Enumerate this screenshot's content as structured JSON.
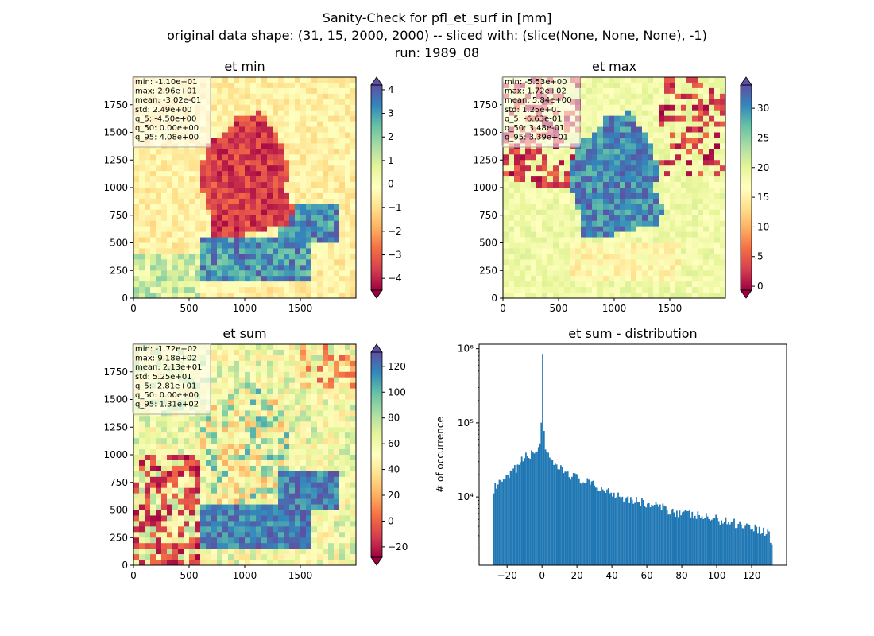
{
  "figure": {
    "title_lines": [
      "Sanity-Check for pfl_et_surf in [mm]",
      "original data shape: (31, 15, 2000, 2000) -- sliced with: (slice(None, None, None), -1)",
      "run: 1989_08"
    ]
  },
  "colormap": {
    "name": "Spectral",
    "stops": [
      "#9e0142",
      "#d53e4f",
      "#f46d43",
      "#fdae61",
      "#fee08b",
      "#ffffbf",
      "#e6f598",
      "#abdda4",
      "#66c2a5",
      "#3288bd",
      "#5e4fa2"
    ]
  },
  "maps": [
    {
      "title": "et min",
      "stats": [
        "min: -1.10e+01",
        "max: 2.96e+01",
        "mean: -3.02e-01",
        "std: 2.49e+00",
        "q_5: -4.50e+00",
        "q_50: 0.00e+00",
        "q_95: 4.08e+00"
      ],
      "xticks": [
        0,
        500,
        1000,
        1500
      ],
      "yticks": [
        0,
        250,
        500,
        750,
        1000,
        1250,
        1500,
        1750
      ],
      "extent": [
        0,
        2000
      ],
      "colorbar": {
        "vmin": -4.5,
        "vmax": 4.2,
        "ticks": [
          -4,
          -3,
          -2,
          -1,
          0,
          1,
          2,
          3,
          4
        ],
        "tick_labels": [
          "−4",
          "−3",
          "−2",
          "−1",
          "0",
          "1",
          "2",
          "3",
          "4"
        ]
      }
    },
    {
      "title": "et max",
      "stats": [
        "min: -5.53e+00",
        "max: 1.72e+02",
        "mean: 5.84e+00",
        "std: 1.25e+01",
        "q_5: -6.63e-01",
        "q_50: 3.48e-01",
        "q_95: 3.39e+01"
      ],
      "xticks": [
        0,
        500,
        1000,
        1500
      ],
      "yticks": [
        0,
        250,
        500,
        750,
        1000,
        1250,
        1500,
        1750
      ],
      "extent": [
        0,
        2000
      ],
      "colorbar": {
        "vmin": -0.66,
        "vmax": 33.9,
        "ticks": [
          0,
          5,
          10,
          15,
          20,
          25,
          30
        ],
        "tick_labels": [
          "0",
          "5",
          "10",
          "15",
          "20",
          "25",
          "30"
        ]
      }
    },
    {
      "title": "et sum",
      "stats": [
        "min: -1.72e+02",
        "max: 9.18e+02",
        "mean: 2.13e+01",
        "std: 5.25e+01",
        "q_5: -2.81e+01",
        "q_50: 0.00e+00",
        "q_95: 1.31e+02"
      ],
      "xticks": [
        0,
        500,
        1000,
        1500
      ],
      "yticks": [
        0,
        250,
        500,
        750,
        1000,
        1250,
        1500,
        1750
      ],
      "extent": [
        0,
        2000
      ],
      "colorbar": {
        "vmin": -28.1,
        "vmax": 131,
        "ticks": [
          -20,
          0,
          20,
          40,
          60,
          80,
          100,
          120
        ],
        "tick_labels": [
          "−20",
          "0",
          "20",
          "40",
          "60",
          "80",
          "100",
          "120"
        ]
      }
    }
  ],
  "chart_data": {
    "type": "bar",
    "title": "et sum - distribution",
    "xlabel": "",
    "ylabel": "# of occurrence",
    "yscale": "log",
    "xlim": [
      -36,
      140
    ],
    "ylim": [
      1200,
      1150000
    ],
    "xticks": [
      -20,
      0,
      20,
      40,
      60,
      80,
      100,
      120
    ],
    "xtick_labels": [
      "−20",
      "0",
      "20",
      "40",
      "60",
      "80",
      "100",
      "120"
    ],
    "yticks": [
      10000,
      100000,
      1000000
    ],
    "ytick_labels": [
      "10⁴",
      "10⁵",
      "10⁶"
    ],
    "bar_color": "#1f77b4",
    "x": [
      -28,
      0,
      20,
      40,
      60,
      80,
      100,
      120,
      131
    ],
    "values": [
      13000,
      850000,
      17000,
      11000,
      8000,
      6000,
      5000,
      4500,
      2000
    ],
    "envelope_note_points": [
      [
        -28,
        13000
      ],
      [
        -20,
        18000
      ],
      [
        -10,
        35000
      ],
      [
        -4,
        40000
      ],
      [
        -1,
        60000
      ],
      [
        0,
        850000
      ],
      [
        1,
        45000
      ],
      [
        5,
        28000
      ],
      [
        10,
        24000
      ],
      [
        20,
        18000
      ],
      [
        30,
        14000
      ],
      [
        40,
        11500
      ],
      [
        50,
        9500
      ],
      [
        60,
        8000
      ],
      [
        70,
        7000
      ],
      [
        80,
        6000
      ],
      [
        90,
        5500
      ],
      [
        100,
        5000
      ],
      [
        110,
        4500
      ],
      [
        120,
        4000
      ],
      [
        130,
        3200
      ],
      [
        131,
        2200
      ]
    ]
  }
}
